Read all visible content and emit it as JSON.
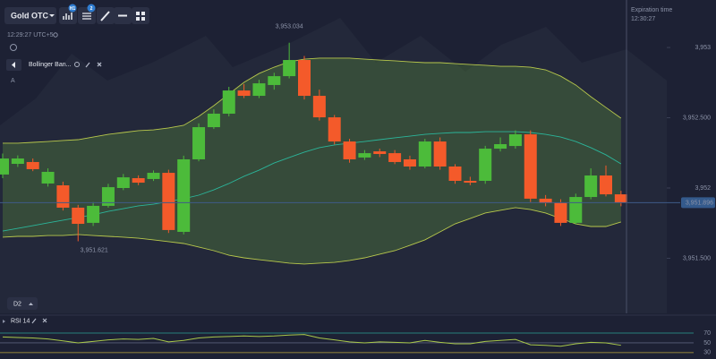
{
  "toolbar": {
    "asset": "Gold OTC",
    "badges": [
      "H1",
      "2"
    ]
  },
  "server_time": "12:29:27 UTC+5",
  "indicator": {
    "name": "Bollinger Ban...",
    "side_label": "A"
  },
  "timeframe": "D2",
  "expiration": {
    "label": "Expiration time",
    "time": "12:30:27"
  },
  "rsi_title": "RSI 14",
  "chart_data": [
    {
      "type": "candlestick",
      "open": [
        3952.096,
        3952.172,
        3952.185,
        3952.032,
        3952.019,
        3951.86,
        3951.752,
        3951.873,
        3952.0,
        3952.07,
        3952.064,
        3952.108,
        3951.688,
        3952.204,
        3952.433,
        3952.529,
        3952.694,
        3952.656,
        3952.733,
        3952.796,
        3952.911,
        3952.656,
        3952.503,
        3952.331,
        3952.217,
        3952.261,
        3952.248,
        3952.204,
        3952.153,
        3952.331,
        3952.153,
        3952.051,
        3952.051,
        3952.28,
        3952.299,
        3952.382,
        3951.924,
        3951.898,
        3951.752,
        3951.936,
        3952.089,
        3951.955
      ],
      "high": [
        3952.245,
        3952.232,
        3952.21,
        3952.14,
        3952.045,
        3951.88,
        3951.9,
        3952.03,
        3952.1,
        3952.09,
        3952.125,
        3952.13,
        3952.23,
        3952.46,
        3952.56,
        3952.72,
        3952.74,
        3952.77,
        3952.82,
        3953.034,
        3952.94,
        3952.7,
        3952.52,
        3952.35,
        3952.27,
        3952.28,
        3952.27,
        3952.23,
        3952.35,
        3952.36,
        3952.17,
        3952.08,
        3952.3,
        3952.36,
        3952.41,
        3952.41,
        3951.95,
        3951.92,
        3951.96,
        3952.14,
        3952.16,
        3951.98
      ],
      "low": [
        3952.07,
        3952.15,
        3952.12,
        3952.01,
        3951.84,
        3951.621,
        3951.73,
        3951.86,
        3951.985,
        3952.02,
        3952.05,
        3951.68,
        3951.67,
        3952.19,
        3952.42,
        3952.51,
        3952.64,
        3952.64,
        3952.7,
        3952.78,
        3952.63,
        3952.48,
        3952.31,
        3952.18,
        3952.2,
        3952.22,
        3952.17,
        3952.13,
        3952.14,
        3952.13,
        3952.03,
        3952.02,
        3952.03,
        3952.26,
        3952.28,
        3951.9,
        3951.87,
        3951.73,
        3951.74,
        3951.92,
        3951.94,
        3951.87
      ],
      "close": [
        3952.21,
        3952.21,
        3952.134,
        3952.115,
        3951.86,
        3951.745,
        3951.873,
        3952.006,
        3952.076,
        3952.038,
        3952.108,
        3951.701,
        3952.204,
        3952.433,
        3952.529,
        3952.694,
        3952.656,
        3952.745,
        3952.796,
        3952.911,
        3952.656,
        3952.503,
        3952.331,
        3952.204,
        3952.248,
        3952.242,
        3952.185,
        3952.153,
        3952.331,
        3952.153,
        3952.051,
        3952.038,
        3952.28,
        3952.312,
        3952.382,
        3951.924,
        3951.892,
        3951.752,
        3951.936,
        3952.089,
        3951.955,
        3951.896
      ],
      "up_color": "#4cbb3a",
      "down_color": "#f45a2a",
      "bands": {
        "upper": [
          3952.319,
          3952.319,
          3952.325,
          3952.331,
          3952.338,
          3952.344,
          3952.363,
          3952.382,
          3952.395,
          3952.408,
          3952.414,
          3952.427,
          3952.446,
          3952.51,
          3952.586,
          3952.669,
          3952.752,
          3952.815,
          3952.86,
          3952.898,
          3952.917,
          3952.924,
          3952.924,
          3952.924,
          3952.917,
          3952.911,
          3952.905,
          3952.898,
          3952.892,
          3952.892,
          3952.885,
          3952.879,
          3952.873,
          3952.866,
          3952.866,
          3952.86,
          3952.841,
          3952.796,
          3952.733,
          3952.65,
          3952.573,
          3952.497
        ],
        "middle": [
          3951.694,
          3951.713,
          3951.732,
          3951.752,
          3951.771,
          3951.79,
          3951.809,
          3951.834,
          3951.853,
          3951.873,
          3951.885,
          3951.904,
          3951.924,
          3951.949,
          3951.987,
          3952.032,
          3952.083,
          3952.127,
          3952.178,
          3952.217,
          3952.255,
          3952.287,
          3952.306,
          3952.319,
          3952.331,
          3952.344,
          3952.357,
          3952.369,
          3952.382,
          3952.389,
          3952.395,
          3952.395,
          3952.401,
          3952.401,
          3952.401,
          3952.395,
          3952.382,
          3952.363,
          3952.331,
          3952.287,
          3952.236,
          3952.172
        ],
        "lower": [
          3951.65,
          3951.656,
          3951.656,
          3951.662,
          3951.662,
          3951.669,
          3951.662,
          3951.656,
          3951.65,
          3951.643,
          3951.631,
          3951.618,
          3951.605,
          3951.58,
          3951.554,
          3951.522,
          3951.503,
          3951.49,
          3951.478,
          3951.465,
          3951.459,
          3951.465,
          3951.471,
          3951.484,
          3951.503,
          3951.529,
          3951.554,
          3951.592,
          3951.631,
          3951.688,
          3951.745,
          3951.783,
          3951.822,
          3951.841,
          3951.86,
          3951.847,
          3951.822,
          3951.783,
          3951.745,
          3951.726,
          3951.726,
          3951.758
        ]
      },
      "ylim": [
        3951.108,
        3953.338
      ],
      "yticks": [
        {
          "value": 3953,
          "label": "3,953"
        },
        {
          "value": 3952.5,
          "label": "3,952.500"
        },
        {
          "value": 3952,
          "label": "3,952"
        },
        {
          "value": 3951.5,
          "label": "3,951.500"
        }
      ],
      "current_price": {
        "value": 3951.896,
        "label": "3,951.896"
      },
      "high_marker": {
        "value": 3953.034,
        "label": "3,953.034"
      },
      "low_marker": {
        "value": 3951.621,
        "label": "3,951.621"
      }
    },
    {
      "type": "line",
      "color": "#a9c84a",
      "values": [
        62,
        61,
        60,
        58,
        54,
        50,
        53,
        56,
        58,
        57,
        59,
        52,
        55,
        60,
        62,
        63,
        64,
        63,
        64,
        66,
        67,
        60,
        56,
        52,
        50,
        52,
        51,
        50,
        55,
        51,
        48,
        48,
        53,
        55,
        57,
        46,
        45,
        43,
        48,
        51,
        50,
        45
      ],
      "ylim": [
        17,
        92
      ],
      "yticks": [
        30,
        50,
        70
      ],
      "level_colors": [
        "#b9a43c",
        "#59607a",
        "#2b9f93"
      ]
    }
  ]
}
